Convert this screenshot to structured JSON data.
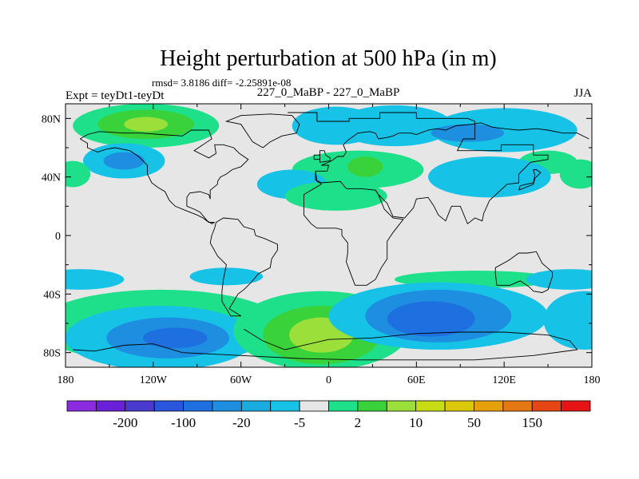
{
  "chart_data": {
    "type": "heatmap",
    "title": "Height perturbation at 500 hPa (in m)",
    "stats_line": "rmsd= 3.8186 diff= -2.25891e-08",
    "left_label": "Expt = teyDt1-teyDt",
    "center_label": "227_0_MaBP - 227_0_MaBP",
    "right_label": "JJA",
    "x_axis": {
      "range": [
        -180,
        180
      ],
      "ticks": [
        -180,
        -120,
        -60,
        0,
        60,
        120,
        180
      ],
      "tick_labels": [
        "180",
        "120W",
        "60W",
        "0",
        "60E",
        "120E",
        "180"
      ]
    },
    "y_axis": {
      "range": [
        -90,
        90
      ],
      "ticks": [
        80,
        40,
        0,
        -40,
        -80
      ],
      "tick_labels": [
        "80N",
        "40N",
        "0",
        "40S",
        "80S"
      ]
    },
    "colorbar": {
      "colors": [
        "#8a2be2",
        "#6a1fd8",
        "#4a3acd",
        "#2a55dd",
        "#1e6fe0",
        "#1e8fe0",
        "#1aabe0",
        "#16c2e6",
        "#e6e6e6",
        "#1fe08a",
        "#3ad23a",
        "#9be03a",
        "#c8dc14",
        "#dcc80a",
        "#e6a00a",
        "#e67814",
        "#e64614",
        "#e61414"
      ],
      "labels": [
        "-200",
        "-100",
        "-20",
        "-5",
        "2",
        "10",
        "50",
        "150"
      ],
      "label_after_box": [
        1,
        3,
        5,
        7,
        9,
        11,
        13,
        15
      ]
    },
    "features": [
      {
        "lon": -125,
        "lat": 75,
        "rx": 50,
        "ry": 15,
        "level": 1
      },
      {
        "lon": -125,
        "lat": 76,
        "rx": 33,
        "ry": 10,
        "level": 2
      },
      {
        "lon": -125,
        "lat": 76,
        "rx": 15,
        "ry": 5,
        "level": 3
      },
      {
        "lon": -140,
        "lat": 51,
        "rx": 28,
        "ry": 12,
        "level": -1
      },
      {
        "lon": -140,
        "lat": 51,
        "rx": 14,
        "ry": 6,
        "level": -2
      },
      {
        "lon": 5,
        "lat": 75,
        "rx": 30,
        "ry": 13,
        "level": -1
      },
      {
        "lon": 45,
        "lat": 75,
        "rx": 40,
        "ry": 14,
        "level": -1
      },
      {
        "lon": 20,
        "lat": 45,
        "rx": 45,
        "ry": 13,
        "level": 1
      },
      {
        "lon": 25,
        "lat": 47,
        "rx": 12,
        "ry": 7,
        "level": 2
      },
      {
        "lon": 120,
        "lat": 72,
        "rx": 50,
        "ry": 15,
        "level": -1
      },
      {
        "lon": 95,
        "lat": 70,
        "rx": 25,
        "ry": 6,
        "level": -2
      },
      {
        "lon": 150,
        "lat": 50,
        "rx": 20,
        "ry": 8,
        "level": 1
      },
      {
        "lon": 110,
        "lat": 40,
        "rx": 42,
        "ry": 14,
        "level": -1
      },
      {
        "lon": -25,
        "lat": 35,
        "rx": 24,
        "ry": 10,
        "level": -1
      },
      {
        "lon": 5,
        "lat": 27,
        "rx": 35,
        "ry": 10,
        "level": 1
      },
      {
        "lon": -175,
        "lat": 42,
        "rx": 12,
        "ry": 9,
        "level": 1
      },
      {
        "lon": 172,
        "lat": 42,
        "rx": 14,
        "ry": 10,
        "level": 1
      },
      {
        "lon": -170,
        "lat": -30,
        "rx": 30,
        "ry": 7,
        "level": -1
      },
      {
        "lon": -70,
        "lat": -28,
        "rx": 25,
        "ry": 6,
        "level": -1
      },
      {
        "lon": 100,
        "lat": -30,
        "rx": 55,
        "ry": 6,
        "level": 1
      },
      {
        "lon": 165,
        "lat": -30,
        "rx": 30,
        "ry": 7,
        "level": -1
      },
      {
        "lon": -115,
        "lat": -62,
        "rx": 85,
        "ry": 25,
        "level": 1
      },
      {
        "lon": -115,
        "lat": -70,
        "rx": 65,
        "ry": 22,
        "level": -1
      },
      {
        "lon": -110,
        "lat": -70,
        "rx": 42,
        "ry": 14,
        "level": -2
      },
      {
        "lon": -105,
        "lat": -70,
        "rx": 22,
        "ry": 7,
        "level": -3
      },
      {
        "lon": -5,
        "lat": -65,
        "rx": 60,
        "ry": 27,
        "level": 1
      },
      {
        "lon": -5,
        "lat": -68,
        "rx": 40,
        "ry": 20,
        "level": 2
      },
      {
        "lon": -5,
        "lat": -68,
        "rx": 22,
        "ry": 12,
        "level": 3
      },
      {
        "lon": 75,
        "lat": -55,
        "rx": 75,
        "ry": 23,
        "level": -1
      },
      {
        "lon": 75,
        "lat": -55,
        "rx": 50,
        "ry": 18,
        "level": -2
      },
      {
        "lon": 70,
        "lat": -57,
        "rx": 30,
        "ry": 12,
        "level": -3
      },
      {
        "lon": 175,
        "lat": -58,
        "rx": 28,
        "ry": 20,
        "level": -1
      }
    ],
    "coastlines": [
      [
        [
          -28,
          84
        ],
        [
          -8,
          84
        ],
        [
          -8,
          78
        ],
        [
          14,
          78
        ],
        [
          14,
          80
        ],
        [
          35,
          80
        ],
        [
          35,
          84
        ],
        [
          60,
          84
        ],
        [
          60,
          80
        ],
        [
          95,
          80
        ],
        [
          100,
          78
        ],
        [
          100,
          66
        ],
        [
          92,
          66
        ],
        [
          88,
          58
        ],
        [
          118,
          58
        ],
        [
          118,
          62
        ],
        [
          140,
          62
        ],
        [
          140,
          55
        ],
        [
          150,
          55
        ],
        [
          150,
          52
        ],
        [
          138,
          50
        ],
        [
          130,
          42
        ],
        [
          130,
          36
        ],
        [
          122,
          35
        ],
        [
          110,
          24
        ],
        [
          106,
          15
        ],
        [
          105,
          10
        ],
        [
          100,
          12
        ],
        [
          95,
          8
        ],
        [
          90,
          20
        ],
        [
          84,
          20
        ],
        [
          80,
          10
        ],
        [
          75,
          14
        ],
        [
          72,
          20
        ],
        [
          68,
          26
        ],
        [
          60,
          25
        ],
        [
          58,
          19
        ],
        [
          52,
          12
        ],
        [
          44,
          13
        ],
        [
          40,
          22
        ],
        [
          34,
          28
        ],
        [
          32,
          31
        ],
        [
          22,
          32
        ],
        [
          12,
          32
        ],
        [
          8,
          37
        ],
        [
          -5,
          36
        ],
        [
          -9,
          38
        ],
        [
          -9,
          44
        ],
        [
          -1,
          44
        ],
        [
          0,
          48
        ],
        [
          -5,
          48
        ],
        [
          2,
          51
        ],
        [
          6,
          54
        ],
        [
          10,
          54
        ],
        [
          12,
          57
        ],
        [
          10,
          62
        ],
        [
          13,
          65
        ],
        [
          20,
          70
        ],
        [
          28,
          71
        ],
        [
          32,
          70
        ],
        [
          34,
          66
        ],
        [
          40,
          67
        ],
        [
          44,
          68
        ],
        [
          48,
          70
        ],
        [
          56,
          70
        ],
        [
          60,
          69
        ],
        [
          68,
          72
        ],
        [
          74,
          73
        ],
        [
          80,
          72
        ],
        [
          87,
          75
        ],
        [
          98,
          76
        ],
        [
          104,
          77
        ],
        [
          112,
          74
        ],
        [
          120,
          73
        ],
        [
          130,
          72
        ],
        [
          142,
          73
        ],
        [
          150,
          72
        ],
        [
          160,
          70
        ],
        [
          170,
          70
        ],
        [
          178,
          66
        ]
      ],
      [
        [
          -9,
          44
        ],
        [
          -8,
          37
        ],
        [
          -6,
          36
        ],
        [
          -5,
          35
        ],
        [
          -17,
          28
        ],
        [
          -17,
          21
        ],
        [
          -17,
          14
        ],
        [
          -12,
          8
        ],
        [
          -8,
          5
        ],
        [
          -2,
          5
        ],
        [
          5,
          5
        ],
        [
          9,
          4
        ],
        [
          9,
          0
        ],
        [
          13,
          -5
        ],
        [
          13,
          -12
        ],
        [
          12,
          -18
        ],
        [
          15,
          -26
        ],
        [
          18,
          -34
        ],
        [
          22,
          -34
        ],
        [
          26,
          -34
        ],
        [
          32,
          -30
        ],
        [
          36,
          -22
        ],
        [
          40,
          -16
        ],
        [
          40,
          -10
        ],
        [
          40,
          -4
        ],
        [
          44,
          2
        ],
        [
          51,
          11
        ],
        [
          44,
          12
        ],
        [
          38,
          18
        ],
        [
          34,
          28
        ],
        [
          32,
          31
        ]
      ],
      [
        [
          -60,
          -55
        ],
        [
          -67,
          -55
        ],
        [
          -73,
          -45
        ],
        [
          -73,
          -38
        ],
        [
          -72,
          -30
        ],
        [
          -70,
          -20
        ],
        [
          -76,
          -14
        ],
        [
          -81,
          -5
        ],
        [
          -80,
          0
        ],
        [
          -78,
          5
        ],
        [
          -77,
          9
        ],
        [
          -72,
          12
        ],
        [
          -62,
          11
        ],
        [
          -58,
          6
        ],
        [
          -51,
          4
        ],
        [
          -50,
          0
        ],
        [
          -44,
          -2
        ],
        [
          -35,
          -6
        ],
        [
          -35,
          -10
        ],
        [
          -39,
          -16
        ],
        [
          -40,
          -22
        ],
        [
          -48,
          -26
        ],
        [
          -53,
          -32
        ],
        [
          -58,
          -37
        ],
        [
          -62,
          -40
        ],
        [
          -65,
          -45
        ],
        [
          -68,
          -50
        ],
        [
          -60,
          -55
        ]
      ],
      [
        [
          -170,
          66
        ],
        [
          -165,
          69
        ],
        [
          -157,
          71
        ],
        [
          -140,
          70
        ],
        [
          -128,
          70
        ],
        [
          -115,
          69
        ],
        [
          -100,
          68
        ],
        [
          -94,
          72
        ],
        [
          -82,
          72
        ],
        [
          -80,
          66
        ],
        [
          -86,
          62
        ],
        [
          -92,
          58
        ],
        [
          -82,
          53
        ],
        [
          -77,
          56
        ],
        [
          -78,
          62
        ],
        [
          -72,
          62
        ],
        [
          -65,
          60
        ],
        [
          -61,
          56
        ],
        [
          -55,
          52
        ],
        [
          -60,
          47
        ],
        [
          -66,
          45
        ],
        [
          -70,
          42
        ],
        [
          -74,
          40
        ],
        [
          -76,
          37
        ],
        [
          -76,
          35
        ],
        [
          -81,
          31
        ],
        [
          -81,
          25
        ],
        [
          -82,
          28
        ],
        [
          -88,
          30
        ],
        [
          -95,
          29
        ],
        [
          -97,
          26
        ],
        [
          -97,
          20
        ],
        [
          -92,
          18
        ],
        [
          -88,
          16
        ],
        [
          -83,
          10
        ],
        [
          -80,
          8
        ],
        [
          -78,
          9
        ],
        [
          -82,
          9
        ],
        [
          -86,
          12
        ],
        [
          -90,
          14
        ],
        [
          -95,
          16
        ],
        [
          -105,
          20
        ],
        [
          -109,
          24
        ],
        [
          -112,
          30
        ],
        [
          -117,
          33
        ],
        [
          -121,
          36
        ],
        [
          -124,
          42
        ],
        [
          -124,
          48
        ],
        [
          -130,
          54
        ],
        [
          -136,
          58
        ],
        [
          -146,
          60
        ],
        [
          -152,
          59
        ],
        [
          -158,
          57
        ],
        [
          -165,
          60
        ],
        [
          -165,
          63
        ],
        [
          -170,
          66
        ]
      ],
      [
        [
          -45,
          60
        ],
        [
          -52,
          64
        ],
        [
          -56,
          70
        ],
        [
          -60,
          76
        ],
        [
          -70,
          78
        ],
        [
          -60,
          82
        ],
        [
          -40,
          83
        ],
        [
          -25,
          82
        ],
        [
          -20,
          76
        ],
        [
          -22,
          70
        ],
        [
          -32,
          68
        ],
        [
          -40,
          64
        ],
        [
          -45,
          60
        ]
      ],
      [
        [
          114,
          -22
        ],
        [
          114,
          -26
        ],
        [
          115,
          -34
        ],
        [
          124,
          -34
        ],
        [
          131,
          -31
        ],
        [
          137,
          -35
        ],
        [
          140,
          -38
        ],
        [
          146,
          -39
        ],
        [
          150,
          -37
        ],
        [
          153,
          -28
        ],
        [
          153,
          -25
        ],
        [
          146,
          -19
        ],
        [
          142,
          -11
        ],
        [
          136,
          -12
        ],
        [
          130,
          -12
        ],
        [
          123,
          -17
        ],
        [
          114,
          -22
        ]
      ],
      [
        [
          -58,
          -64
        ],
        [
          -45,
          -72
        ],
        [
          -30,
          -78
        ],
        [
          0,
          -71
        ],
        [
          30,
          -70
        ],
        [
          60,
          -67
        ],
        [
          90,
          -66
        ],
        [
          120,
          -66
        ],
        [
          150,
          -68
        ],
        [
          165,
          -72
        ],
        [
          170,
          -78
        ],
        [
          140,
          -82
        ],
        [
          100,
          -85
        ],
        [
          60,
          -85
        ],
        [
          20,
          -85
        ],
        [
          -20,
          -84
        ],
        [
          -60,
          -82
        ],
        [
          -100,
          -80
        ],
        [
          -120,
          -74
        ],
        [
          -140,
          -75
        ],
        [
          -160,
          -79
        ],
        [
          -175,
          -78
        ]
      ],
      [
        [
          -6,
          50
        ],
        [
          -6,
          58
        ],
        [
          -3,
          58
        ],
        [
          -2,
          55
        ],
        [
          1,
          53
        ],
        [
          1,
          51
        ],
        [
          -6,
          50
        ]
      ],
      [
        [
          -10,
          52
        ],
        [
          -10,
          55
        ],
        [
          -6,
          55
        ],
        [
          -6,
          52
        ],
        [
          -10,
          52
        ]
      ],
      [
        [
          130,
          31
        ],
        [
          131,
          34
        ],
        [
          135,
          35
        ],
        [
          140,
          36
        ],
        [
          141,
          41
        ],
        [
          140,
          45
        ],
        [
          142,
          45
        ],
        [
          145,
          43
        ],
        [
          141,
          39
        ],
        [
          140,
          35
        ],
        [
          135,
          33
        ],
        [
          130,
          31
        ]
      ]
    ]
  }
}
